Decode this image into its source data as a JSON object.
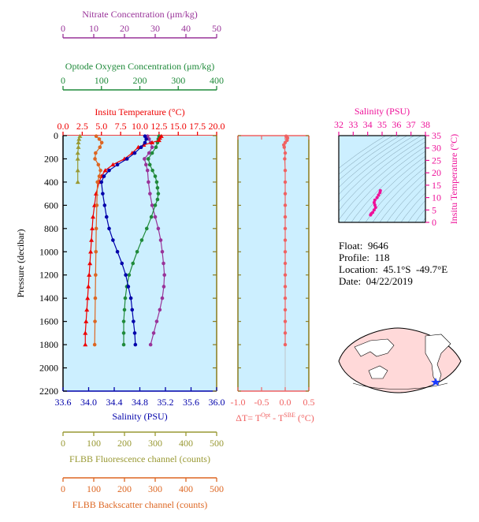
{
  "chart_data": {
    "type": "line",
    "main_panel": {
      "ylabel": "Pressure (decibar)",
      "ylim": [
        2200,
        0
      ],
      "y_ticks": [
        "0",
        "200",
        "400",
        "600",
        "800",
        "1000",
        "1200",
        "1400",
        "1600",
        "1800",
        "2000",
        "2200"
      ],
      "axes": [
        {
          "name": "Nitrate Concentration (μm/kg)",
          "color": "#993399",
          "range": [
            0,
            50
          ],
          "ticks": [
            "0",
            "10",
            "20",
            "30",
            "40",
            "50"
          ]
        },
        {
          "name": "Optode Oxygen Concentration (μm/kg)",
          "color": "#1f8a3a",
          "range": [
            0,
            400
          ],
          "ticks": [
            "0",
            "100",
            "200",
            "300",
            "400"
          ]
        },
        {
          "name": "Insitu Temperature (°C)",
          "color": "#ee0000",
          "range": [
            0,
            20
          ],
          "ticks": [
            "0.0",
            "2.5",
            "5.0",
            "7.5",
            "10.0",
            "12.5",
            "15.0",
            "17.5",
            "20.0"
          ]
        },
        {
          "name": "Salinity (PSU)",
          "color": "#0000aa",
          "range": [
            33.6,
            36.0
          ],
          "ticks": [
            "33.6",
            "34.0",
            "34.4",
            "34.8",
            "35.2",
            "35.6",
            "36.0"
          ]
        },
        {
          "name": "FLBB Fluorescence channel (counts)",
          "color": "#999933",
          "range": [
            0,
            500
          ],
          "ticks": [
            "0",
            "100",
            "200",
            "300",
            "400",
            "500"
          ]
        },
        {
          "name": "FLBB Backscatter channel (counts)",
          "color": "#dd6622",
          "range": [
            0,
            500
          ],
          "ticks": [
            "0",
            "100",
            "200",
            "300",
            "400",
            "500"
          ]
        }
      ],
      "series": [
        {
          "name": "Nitrate",
          "axis": 0,
          "color": "#993399",
          "marker": "circle",
          "points": [
            [
              27.5,
              5
            ],
            [
              28,
              30
            ],
            [
              28.5,
              60
            ],
            [
              29,
              100
            ],
            [
              28,
              150
            ],
            [
              26.5,
              200
            ],
            [
              27,
              250
            ],
            [
              27.5,
              300
            ],
            [
              27.8,
              400
            ],
            [
              28.3,
              500
            ],
            [
              29,
              600
            ],
            [
              30,
              700
            ],
            [
              31,
              800
            ],
            [
              31.8,
              900
            ],
            [
              32.3,
              1000
            ],
            [
              32.7,
              1100
            ],
            [
              33,
              1200
            ],
            [
              32.8,
              1300
            ],
            [
              32.3,
              1400
            ],
            [
              31.5,
              1500
            ],
            [
              30.5,
              1600
            ],
            [
              29.5,
              1700
            ],
            [
              28.5,
              1800
            ]
          ]
        },
        {
          "name": "Oxygen",
          "axis": 1,
          "color": "#1f8a3a",
          "marker": "circle",
          "points": [
            [
              250,
              5
            ],
            [
              248,
              30
            ],
            [
              246,
              60
            ],
            [
              242,
              100
            ],
            [
              232,
              150
            ],
            [
              222,
              200
            ],
            [
              226,
              250
            ],
            [
              233,
              300
            ],
            [
              240,
              350
            ],
            [
              244,
              400
            ],
            [
              246,
              450
            ],
            [
              248,
              500
            ],
            [
              246,
              550
            ],
            [
              240,
              600
            ],
            [
              230,
              700
            ],
            [
              218,
              800
            ],
            [
              205,
              900
            ],
            [
              193,
              1000
            ],
            [
              182,
              1100
            ],
            [
              172,
              1200
            ],
            [
              166,
              1300
            ],
            [
              162,
              1400
            ],
            [
              160,
              1500
            ],
            [
              158,
              1600
            ],
            [
              158,
              1700
            ],
            [
              158,
              1800
            ]
          ]
        },
        {
          "name": "Temperature",
          "axis": 2,
          "color": "#ee0000",
          "marker": "triangle",
          "points": [
            [
              12.8,
              5
            ],
            [
              12.6,
              20
            ],
            [
              12.5,
              40
            ],
            [
              11.6,
              60
            ],
            [
              10.5,
              80
            ],
            [
              9.8,
              100
            ],
            [
              9,
              150
            ],
            [
              8,
              200
            ],
            [
              6.5,
              250
            ],
            [
              5.5,
              300
            ],
            [
              5,
              350
            ],
            [
              4.7,
              400
            ],
            [
              4.3,
              500
            ],
            [
              4.1,
              600
            ],
            [
              3.9,
              700
            ],
            [
              3.8,
              800
            ],
            [
              3.7,
              900
            ],
            [
              3.6,
              1000
            ],
            [
              3.5,
              1100
            ],
            [
              3.4,
              1200
            ],
            [
              3.3,
              1300
            ],
            [
              3.2,
              1400
            ],
            [
              3.1,
              1500
            ],
            [
              3.0,
              1600
            ],
            [
              2.9,
              1700
            ],
            [
              2.9,
              1800
            ]
          ]
        },
        {
          "name": "Salinity",
          "axis": 3,
          "color": "#0000aa",
          "marker": "circle",
          "points": [
            [
              34.88,
              5
            ],
            [
              34.9,
              30
            ],
            [
              34.88,
              60
            ],
            [
              34.82,
              100
            ],
            [
              34.72,
              150
            ],
            [
              34.6,
              200
            ],
            [
              34.45,
              250
            ],
            [
              34.32,
              300
            ],
            [
              34.24,
              350
            ],
            [
              34.2,
              400
            ],
            [
              34.22,
              500
            ],
            [
              34.25,
              600
            ],
            [
              34.28,
              700
            ],
            [
              34.32,
              800
            ],
            [
              34.38,
              900
            ],
            [
              34.45,
              1000
            ],
            [
              34.52,
              1100
            ],
            [
              34.58,
              1200
            ],
            [
              34.62,
              1300
            ],
            [
              34.66,
              1400
            ],
            [
              34.68,
              1500
            ],
            [
              34.7,
              1600
            ],
            [
              34.72,
              1700
            ],
            [
              34.73,
              1800
            ]
          ]
        },
        {
          "name": "Fluorescence",
          "axis": 4,
          "color": "#999933",
          "marker": "triangle",
          "points": [
            [
              55,
              5
            ],
            [
              52,
              30
            ],
            [
              50,
              60
            ],
            [
              50,
              100
            ],
            [
              48,
              150
            ],
            [
              48,
              200
            ],
            [
              48,
              300
            ],
            [
              48,
              400
            ]
          ]
        },
        {
          "name": "Backscatter",
          "axis": 5,
          "color": "#dd6622",
          "marker": "circle",
          "points": [
            [
              108,
              5
            ],
            [
              118,
              30
            ],
            [
              126,
              60
            ],
            [
              120,
              100
            ],
            [
              106,
              150
            ],
            [
              104,
              200
            ],
            [
              115,
              250
            ],
            [
              122,
              300
            ],
            [
              118,
              350
            ],
            [
              112,
              400
            ],
            [
              110,
              600
            ],
            [
              108,
              800
            ],
            [
              107,
              1000
            ],
            [
              106,
              1200
            ],
            [
              105,
              1400
            ],
            [
              104,
              1600
            ],
            [
              103,
              1800
            ]
          ]
        }
      ]
    },
    "dt_panel": {
      "xlabel": "ΔT= TOpt - TSBE (°C)",
      "xlabel_parts": {
        "delta": "ΔT= T",
        "sup1": "Opt",
        "mid": " - T",
        "sup2": "SBE",
        "unit": " (°C)"
      },
      "xlim": [
        -1.0,
        0.5
      ],
      "x_ticks": [
        "-1.0",
        "-0.5",
        "0.0",
        "0.5"
      ],
      "color": "#f06262",
      "points": [
        [
          0.02,
          5
        ],
        [
          0.05,
          20
        ],
        [
          0.04,
          40
        ],
        [
          0.0,
          60
        ],
        [
          -0.03,
          80
        ],
        [
          -0.02,
          100
        ],
        [
          0.0,
          150
        ],
        [
          -0.01,
          200
        ],
        [
          0.0,
          300
        ],
        [
          0.0,
          400
        ],
        [
          0.0,
          500
        ],
        [
          0.0,
          600
        ],
        [
          0.0,
          700
        ],
        [
          0.0,
          800
        ],
        [
          0.0,
          900
        ],
        [
          0.0,
          1000
        ],
        [
          0.0,
          1100
        ],
        [
          0.0,
          1200
        ],
        [
          0.0,
          1300
        ],
        [
          0.0,
          1400
        ],
        [
          0.0,
          1500
        ],
        [
          0.0,
          1600
        ],
        [
          0.0,
          1700
        ],
        [
          0.0,
          1800
        ]
      ]
    },
    "ts_panel": {
      "title": "Salinity (PSU)",
      "ylabel": "Insitu Temperature (°C)",
      "xlim": [
        32,
        38
      ],
      "ylim": [
        0,
        35
      ],
      "x_ticks": [
        "32",
        "33",
        "34",
        "35",
        "36",
        "37",
        "38"
      ],
      "y_ticks": [
        "0",
        "5",
        "10",
        "15",
        "20",
        "25",
        "30",
        "35"
      ],
      "color": "#ee1199",
      "points": [
        [
          34.2,
          3
        ],
        [
          34.25,
          3.5
        ],
        [
          34.35,
          4
        ],
        [
          34.45,
          5
        ],
        [
          34.55,
          6
        ],
        [
          34.5,
          7
        ],
        [
          34.45,
          8
        ],
        [
          34.5,
          9
        ],
        [
          34.65,
          10
        ],
        [
          34.75,
          11
        ],
        [
          34.85,
          12
        ],
        [
          34.88,
          12.8
        ]
      ]
    }
  },
  "info": {
    "float": "Float:  9646",
    "profile": "Profile:  118",
    "location": "Location:  45.1°S  -49.7°E",
    "date": "Date:  04/22/2019"
  },
  "colors": {
    "panel_bg": "#ccefff",
    "axis_olive": "#8a7a1a"
  }
}
